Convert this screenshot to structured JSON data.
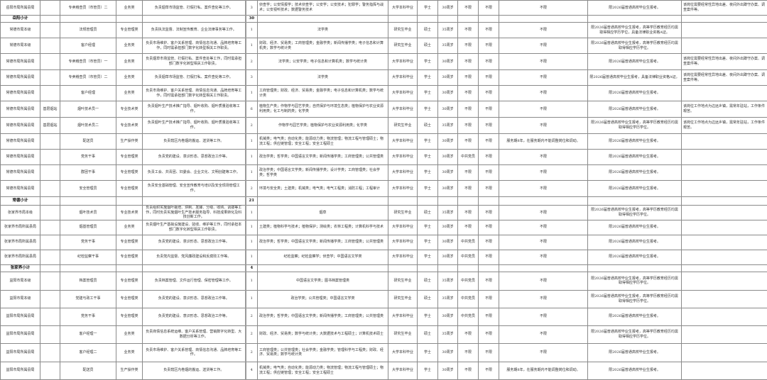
{
  "columns_meta": [
    "unit",
    "department",
    "position",
    "category",
    "duties",
    "count",
    "major",
    "education",
    "degree",
    "age",
    "political_status",
    "other_1",
    "other_requirements",
    "target",
    "remarks"
  ],
  "rows": [
    {
      "type": "job",
      "cells": [
        "岳阳市局所属县局",
        "",
        "专卖稽查员（市管员）二",
        "业务类",
        "负责烟草市场监管、打假打私、案件查处等工作。",
        "3",
        "侦查学；公安情报学；技术侦查学；公安学；公安技术；犯罪学；警务指挥与战术；公安视听技术；数据警务技术",
        "大学本科毕业",
        "学士",
        "30周岁",
        "不限",
        "不限",
        "不限",
        "限2026届普通高校毕业生报考。",
        "该岗位需要经常性异地出差、夜间外出蹲守办案、调查案件等。"
      ]
    },
    {
      "type": "subtotal",
      "label": "岳阳小计",
      "count": "30"
    },
    {
      "type": "job",
      "cells": [
        "常德市局本级",
        "",
        "法规管理员",
        "专业管理类",
        "负责执法监督、法制宣传教育、企业法律事务等工作。",
        "1",
        "法学类",
        "研究生毕业",
        "硕士",
        "35周岁",
        "不限",
        "不限",
        "不限",
        "限2026届普通高校毕业生报考，高等学历教育经历均需取得相应学历学位，具备法律职业资格A证。",
        ""
      ]
    },
    {
      "type": "job",
      "cells": [
        "常德市局本级",
        "",
        "客户经理",
        "业务类",
        "负责市场维护、客户关系管理、商情信息沟通、品牌培育等工作，同时需承担部门数字化转型相关工作职责。",
        "1",
        "财政、经济、贸易类；工商管理类；金融学类；新闻传播学类；电子信息和计算机类；数学与统计类",
        "研究生毕业",
        "硕士",
        "35周岁",
        "不限",
        "不限",
        "不限",
        "限2026届普通高校毕业生报考，高等学历教育经历均需取得相应学历学位。",
        ""
      ]
    },
    {
      "type": "job",
      "cells": [
        "常德市局所属县局",
        "",
        "专卖稽查员（市管员）一",
        "业务类",
        "负责烟草市场监管、打假打私、案件查处等工作，同时需承担部门数字化转型相关工作职责。",
        "2",
        "法学类；公安学类；电子信息和计算机类；数学与统计类",
        "大学本科毕业",
        "学士",
        "30周岁",
        "不限",
        "不限",
        "不限",
        "限2026届普通高校毕业生报考。",
        "该岗位需要经常性异地出差、夜间外出蹲守办案、调查案件等。"
      ]
    },
    {
      "type": "job",
      "cells": [
        "常德市局所属县局",
        "",
        "专卖稽查员（市管员）二",
        "业务类",
        "负责烟草市场监管、打假打私、案件查处等工作。",
        "3",
        "法学类",
        "大学本科毕业",
        "学士",
        "30周岁",
        "不限",
        "不限",
        "不限",
        "限2026届普通高校毕业生报考，具备法律职业资格A证。",
        "该岗位需要经常性异地出差、夜间外出蹲守办案、调查案件等。"
      ]
    },
    {
      "type": "job",
      "cells": [
        "常德市局所属县局",
        "",
        "客户经理",
        "业务类",
        "负责市场维护、客户关系管理、商情信息沟通、品牌培育等工作，同时需承担部门数字化转型相关工作职责。",
        "1",
        "工商管理类；财政、经济、贸易类；金融学类；电子信息和计算机类；数学与统计类",
        "大学本科毕业",
        "学士",
        "30周岁",
        "不限",
        "不限",
        "不限",
        "限2026届普通高校毕业生报考。",
        ""
      ]
    },
    {
      "type": "job",
      "cells": [
        "常德市局所属县局",
        "基层烟站",
        "烟叶技术员一",
        "专业技术类",
        "负责烟叶生产技术推广指导、烟叶收购、烟叶质量验收等工作。",
        "6",
        "植物生产类；作物学与园艺学类；自然保护与环境生态类；植物保护与农业资源利用类；化工与制药类；化学类",
        "大学本科毕业",
        "学士",
        "30周岁",
        "不限",
        "不限",
        "不限",
        "限2026届普通高校毕业生报考。",
        "该岗位工作地点为边远乡镇，需常年驻站，工作条件艰苦。"
      ]
    },
    {
      "type": "job",
      "cells": [
        "常德市局所属县局",
        "基层烟站",
        "烟叶技术员二",
        "专业技术类",
        "负责烟叶生产技术推广指导、烟叶收购、烟叶质量验收等工作。",
        "2",
        "作物学与园艺学类；植物保护与农业资源利用类；化学类",
        "研究生毕业",
        "硕士",
        "35周岁",
        "不限",
        "不限",
        "不限",
        "限2026届普通高校毕业生报考，高等学历教育经历均需取得相应学历学位。",
        "该岗位工作地点为边远乡镇，需常年驻站，工作条件艰苦。"
      ]
    },
    {
      "type": "job",
      "cells": [
        "常德市局所属县局",
        "",
        "配送员",
        "生产操作类",
        "负责辖区内卷烟的搬运、送货等工作。",
        "1",
        "机械类；电气类；自动化类；能源动力类；物流管理；物流工程与管理硕士；物流工程；供应链管理；安全工程；安全工程硕士",
        "大学本科毕业",
        "学士",
        "30周岁",
        "不限",
        "不限",
        "服务期8年，在服务期内不能调整岗位和调动。",
        "限2026届普通高校毕业生报考。",
        ""
      ]
    },
    {
      "type": "job",
      "cells": [
        "常德市局所属县局",
        "",
        "党务干事",
        "专业管理类",
        "负责党的建设、意识形态、思想政治工作等。",
        "1",
        "政治学类；哲学类；中国语言文学类；新闻传播学类；工商管理类；公共管理类",
        "大学本科毕业",
        "学士",
        "30周岁",
        "中共党员",
        "不限",
        "不限",
        "限2026届普通高校毕业生报考。",
        ""
      ]
    },
    {
      "type": "job",
      "cells": [
        "常德市局所属县局",
        "",
        "群团干事",
        "专业管理类",
        "负责工会、共青团、妇委会、企业文化、文明创建等工作。",
        "1",
        "政治学类；中国语言文学类；新闻传播学类；设计学类；工商管理类；社会学类；哲学类",
        "大学本科毕业",
        "学士",
        "30周岁",
        "不限",
        "不限",
        "不限",
        "限2026届普通高校毕业生报考。",
        ""
      ]
    },
    {
      "type": "job",
      "cells": [
        "常德市局所属县局",
        "",
        "安全管理员",
        "专业管理类",
        "负责安全基础管理、安全宣传教育与培训及安全现场管理工作。",
        "2",
        "环境与安全类；土建类；机械类；电气类；电气工程类；消防工程；工程审计",
        "大学本科毕业",
        "学士",
        "30周岁",
        "不限",
        "不限",
        "不限",
        "限2026届普通高校毕业生报考。",
        ""
      ]
    },
    {
      "type": "subtotal",
      "label": "常德小计",
      "count": "21"
    },
    {
      "type": "job",
      "cells": [
        "张家界市局本级",
        "",
        "烟叶技术员",
        "专业技术类",
        "负责组织实施烟叶栽培、烘制、发酵、分级、收购、调拨等工作，同时负责实施烟叶生产技术服务指导、科技成果转化及科技创新工作。",
        "1",
        "烟草",
        "研究生毕业",
        "硕士",
        "35周岁",
        "不限",
        "不限",
        "不限",
        "限2026届普通高校毕业生报考，高等学历教育经历均需取得相应学历学位。",
        ""
      ]
    },
    {
      "type": "job",
      "cells": [
        "张家界市局所属县局",
        "",
        "烟基管理员",
        "业务类",
        "负责烟叶生产基础设施建设、验收、维护等工作，同时承担本部门数字化转型相关工作职责。",
        "1",
        "土建类；植物科学与技术；植物保护；测绘类；农林工程类；计算机科学与技术",
        "大学本科毕业",
        "学士",
        "30周岁",
        "不限",
        "不限",
        "不限",
        "限2026届普通高校毕业生报考。",
        ""
      ]
    },
    {
      "type": "job",
      "cells": [
        "张家界市局所属县局",
        "",
        "党务干事",
        "专业管理类",
        "负责党的建设、意识形态、思想政治工作等。",
        "1",
        "政治学类；哲学类；中国语言文学类；新闻传播学类；工商管理类；公共管理类",
        "大学本科毕业",
        "学士",
        "30周岁",
        "中共党员",
        "不限",
        "不限",
        "限2026届普通高校毕业生报考。",
        ""
      ]
    },
    {
      "type": "job",
      "cells": [
        "张家界市局所属县局",
        "",
        "纪检监察干事",
        "专业管理类",
        "负责党内监督、党风廉政建设和反腐败工作等。",
        "1",
        "纪检监察；纪检监察学；侦查学；中国语言文学类",
        "大学本科毕业",
        "学士",
        "30周岁",
        "中共党员",
        "不限",
        "不限",
        "限2026届普通高校毕业生报考。",
        ""
      ]
    },
    {
      "type": "subtotal",
      "label": "张家界小计",
      "count": "4"
    },
    {
      "type": "job",
      "cells": [
        "益阳市局本级",
        "",
        "档案管理员",
        "专业管理类",
        "负责档案管理、文件运行管理、保密管理等工作。",
        "1",
        "中国语言文学类；图书档案管理类",
        "研究生毕业",
        "硕士",
        "35周岁",
        "中共党员",
        "不限",
        "不限",
        "限2026届普通高校毕业生报考，高等学历教育经历均需取得相应学历学位。",
        ""
      ]
    },
    {
      "type": "job",
      "cells": [
        "益阳市局本级",
        "",
        "党建与政工干事",
        "专业管理类",
        "负责党的建设、意识形态、思想政治工作等。",
        "1",
        "政治学类；公共管理类；中国语言文学类",
        "研究生毕业",
        "硕士",
        "35周岁",
        "中共党员",
        "不限",
        "不限",
        "限2026届普通高校毕业生报考，高等学历教育经历均需取得相应学历学位。",
        ""
      ]
    },
    {
      "type": "job",
      "cells": [
        "益阳市局所属县局",
        "",
        "党务干事",
        "专业管理类",
        "负责党的建设、意识形态、思想政治工作等。",
        "2",
        "政治学类；哲学类；中国语言文学类；新闻传播学类；工商管理类；公共管理类",
        "大学本科毕业",
        "学士",
        "30周岁",
        "中共党员",
        "不限",
        "不限",
        "限2026届普通高校毕业生报考。",
        ""
      ]
    },
    {
      "type": "job",
      "cells": [
        "益阳市局所属县局",
        "",
        "客户经理一",
        "业务类",
        "负责商情信息系统运维、客户关系管理、营销数字化转型、大数据分析等工作。",
        "2",
        "财政、经济、贸易类；数学与统计类；大数据技术与工程硕士；计算机技术硕士",
        "研究生毕业",
        "硕士",
        "35周岁",
        "不限",
        "不限",
        "不限",
        "限2026届普通高校毕业生报考，高等学历教育经历均需取得相应学历学位。",
        ""
      ]
    },
    {
      "type": "job",
      "cells": [
        "益阳市局所属县局",
        "",
        "客户经理二",
        "业务类",
        "负责市场维护、客户关系管理、商情信息沟通、品牌培育等工作。",
        "2",
        "工商管理类；公共管理类；社会学类；金融学类；管理科学与工程类；财政、经济、贸易类；数学与统计类",
        "大学本科毕业",
        "学士",
        "30周岁",
        "不限",
        "不限",
        "不限",
        "限2026届普通高校毕业生报考。",
        ""
      ]
    },
    {
      "type": "job",
      "cells": [
        "益阳市局所属县局",
        "",
        "配送员",
        "生产操作类",
        "负责辖区内卷烟的搬运、送货等工作。",
        "4",
        "机械类；电气类；自动化类；能源动力类；物流管理；物流工程与管理硕士；物流工程；供应链管理；安全工程；安全工程硕士",
        "大学本科毕业",
        "学士",
        "30周岁",
        "不限",
        "不限",
        "服务期8年，在服务期内不能调整岗位和调动。",
        "限2026届普通高校毕业生报考。",
        ""
      ]
    }
  ]
}
